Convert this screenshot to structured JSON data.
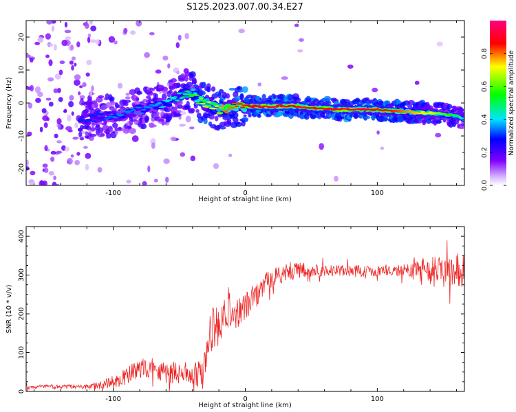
{
  "title": "S125.2023.007.00.34.E27",
  "chart_data": [
    {
      "type": "heatmap",
      "xlabel": "Height of straight line (km)",
      "ylabel": "Frequency (Hz)",
      "xlim": [
        -166,
        166
      ],
      "ylim": [
        -25,
        25
      ],
      "xticks": [
        -100,
        0,
        100
      ],
      "yticks": [
        -20,
        -10,
        0,
        10,
        20
      ],
      "colorbar": {
        "label": "Normalized spectral amplitude",
        "range": [
          0,
          1
        ],
        "ticks": [
          0.0,
          0.2,
          0.4,
          0.6,
          0.8
        ],
        "tick_labels": [
          "0.0",
          "0.2",
          "0.4",
          "0.6",
          "0.8"
        ],
        "colormap": [
          "#ffffff",
          "#d9b8ff",
          "#8000ff",
          "#0000ff",
          "#00e5ff",
          "#00ff00",
          "#ffff00",
          "#ff0000",
          "#ff0080"
        ]
      },
      "ridge": {
        "x": [
          -120,
          -110,
          -100,
          -90,
          -80,
          -70,
          -60,
          -50,
          -45,
          -40,
          -35,
          -30,
          -25,
          -20,
          -15,
          -10,
          -5,
          0,
          10,
          20,
          30,
          40,
          50,
          60,
          70,
          80,
          90,
          100,
          110,
          120,
          130,
          140,
          150,
          160,
          166
        ],
        "y": [
          -5,
          -4,
          -4,
          -3,
          -2,
          -1,
          0,
          2,
          3,
          3,
          1,
          0,
          -1,
          -2,
          -2,
          -1,
          -1,
          -1,
          -1,
          -1,
          -1,
          -1,
          -1.5,
          -1.5,
          -2,
          -2,
          -2,
          -2,
          -2.5,
          -2.5,
          -3,
          -3,
          -3.5,
          -4,
          -5
        ],
        "amplitude": [
          0.3,
          0.3,
          0.35,
          0.35,
          0.35,
          0.35,
          0.4,
          0.45,
          0.5,
          0.55,
          0.6,
          0.75,
          0.7,
          0.75,
          0.8,
          0.8,
          0.85,
          0.85,
          0.9,
          0.9,
          0.9,
          0.85,
          0.85,
          0.85,
          0.9,
          0.9,
          0.9,
          0.85,
          0.85,
          0.8,
          0.75,
          0.7,
          0.6,
          0.5,
          0.4
        ]
      }
    },
    {
      "type": "line",
      "xlabel": "Height of straight line (km)",
      "ylabel": "SNR (10 * v/v)",
      "xlim": [
        -166,
        166
      ],
      "ylim": [
        0,
        425
      ],
      "xticks": [
        -100,
        0,
        100
      ],
      "yticks": [
        0,
        100,
        200,
        300,
        400
      ],
      "color": "#ee2222",
      "trend": {
        "x": [
          -166,
          -140,
          -120,
          -110,
          -100,
          -90,
          -80,
          -70,
          -60,
          -50,
          -40,
          -32,
          -28,
          -25,
          -20,
          -10,
          0,
          10,
          20,
          30,
          40,
          60,
          80,
          100,
          120,
          140,
          160,
          166
        ],
        "y": [
          12,
          12,
          12,
          15,
          22,
          40,
          60,
          60,
          50,
          50,
          45,
          40,
          130,
          160,
          165,
          200,
          220,
          255,
          295,
          305,
          312,
          312,
          310,
          312,
          312,
          310,
          312,
          312
        ]
      },
      "noise": {
        "x": [
          -166,
          -120,
          -100,
          -60,
          -40,
          -30,
          -25,
          0,
          20,
          60,
          120,
          140,
          166
        ],
        "amp": [
          5,
          6,
          18,
          30,
          28,
          45,
          60,
          35,
          25,
          15,
          15,
          40,
          45
        ]
      }
    }
  ]
}
